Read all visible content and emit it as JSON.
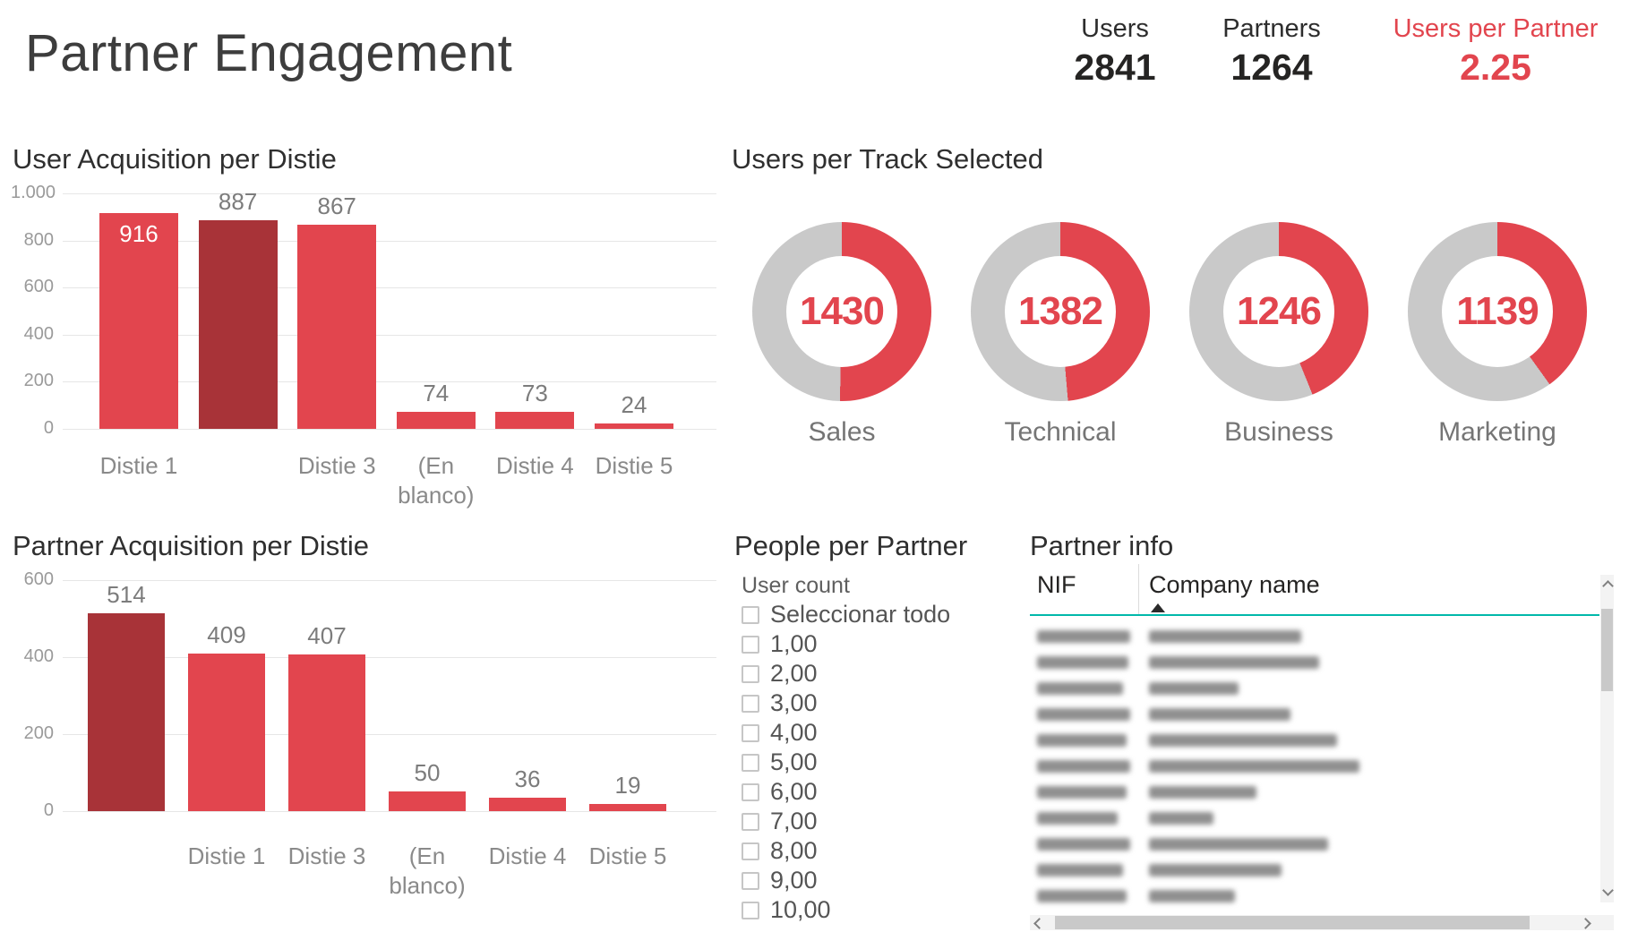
{
  "page_title": "Partner Engagement",
  "kpis": [
    {
      "label": "Users",
      "value": "2841",
      "color": "#252423"
    },
    {
      "label": "Partners",
      "value": "1264",
      "color": "#252423"
    },
    {
      "label": "Users per Partner",
      "value": "2.25",
      "color": "#E2454E"
    }
  ],
  "colors": {
    "accent_red": "#E2454E",
    "dark_red": "#A83338",
    "donut_gray": "#C9C9C9",
    "grid": "#E6E6E6",
    "table_accent_teal": "#01B8AA"
  },
  "chart_data": [
    {
      "id": "user-acquisition",
      "type": "bar",
      "title": "User Acquisition per Distie",
      "categories": [
        "Distie 1",
        "",
        "Distie 3",
        "(En blanco)",
        "Distie 4",
        "Distie 5"
      ],
      "values": [
        916,
        887,
        867,
        74,
        73,
        24
      ],
      "bar_colors": [
        "#E2454E",
        "#A83338",
        "#E2454E",
        "#E2454E",
        "#E2454E",
        "#E2454E"
      ],
      "label_inside": [
        true,
        false,
        false,
        false,
        false,
        false
      ],
      "xlabel": "",
      "ylabel": "",
      "ylim": [
        0,
        1000
      ],
      "yticks": [
        0,
        200,
        400,
        600,
        800,
        1000
      ],
      "ytick_labels": [
        "0",
        "200",
        "400",
        "600",
        "800",
        "1.000"
      ],
      "grid": true,
      "legend": "none"
    },
    {
      "id": "partner-acquisition",
      "type": "bar",
      "title": "Partner Acquisition per Distie",
      "categories": [
        "",
        "Distie 1",
        "Distie 3",
        "(En blanco)",
        "Distie 4",
        "Distie 5"
      ],
      "values": [
        514,
        409,
        407,
        50,
        36,
        19
      ],
      "bar_colors": [
        "#A83338",
        "#E2454E",
        "#E2454E",
        "#E2454E",
        "#E2454E",
        "#E2454E"
      ],
      "label_inside": [
        false,
        false,
        false,
        false,
        false,
        false
      ],
      "xlabel": "",
      "ylabel": "",
      "ylim": [
        0,
        600
      ],
      "yticks": [
        0,
        200,
        400,
        600
      ],
      "ytick_labels": [
        "0",
        "200",
        "400",
        "600"
      ],
      "grid": true,
      "legend": "none"
    },
    {
      "id": "users-per-track",
      "type": "pie",
      "title": "Users per Track Selected",
      "total": 2841,
      "items": [
        {
          "label": "Sales",
          "value": 1430
        },
        {
          "label": "Technical",
          "value": 1382
        },
        {
          "label": "Business",
          "value": 1246
        },
        {
          "label": "Marketing",
          "value": 1139
        }
      ],
      "arc_color": "#E2454E",
      "ring_color": "#C9C9C9"
    }
  ],
  "filter_panel": {
    "title": "People per Partner",
    "field_label": "User count",
    "options": [
      "Seleccionar todo",
      "1,00",
      "2,00",
      "3,00",
      "4,00",
      "5,00",
      "6,00",
      "7,00",
      "8,00",
      "9,00",
      "10,00"
    ],
    "checked_options": []
  },
  "table_panel": {
    "title": "Partner info",
    "columns": [
      "NIF",
      "Company name"
    ],
    "sorted_column": "Company name",
    "sort_direction": "ascending",
    "rows_obscured": true,
    "visible_row_count": 11
  }
}
